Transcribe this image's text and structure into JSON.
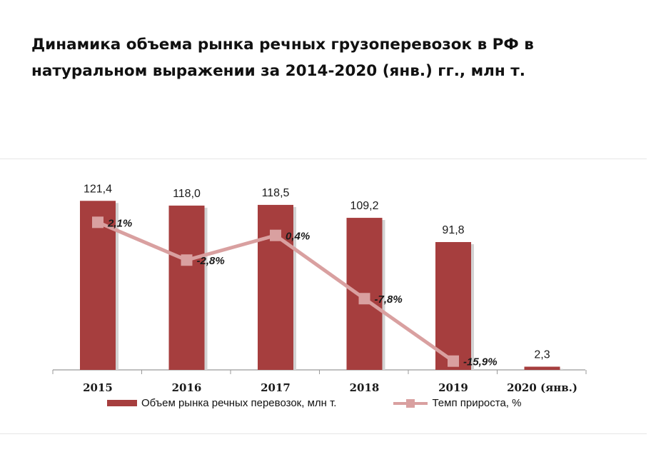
{
  "chart_data": {
    "type": "bar",
    "title": "Динамика объема рынка речных грузоперевозок в РФ в натуральном выражении за 2014-2020 (янв.) гг., млн т.",
    "categories": [
      "2015",
      "2016",
      "2017",
      "2018",
      "2019",
      "2020 (янв.)"
    ],
    "series": [
      {
        "name": "Объем рынка речных перевозок, млн т.",
        "type": "bar",
        "values": [
          121.4,
          118.0,
          118.5,
          109.2,
          91.8,
          2.3
        ],
        "labels": [
          "121,4",
          "118,0",
          "118,5",
          "109,2",
          "91,8",
          "2,3"
        ]
      },
      {
        "name": "Темп прироста, %",
        "type": "line",
        "values": [
          2.1,
          -2.8,
          0.4,
          -7.8,
          -15.9,
          null
        ],
        "labels": [
          "2,1%",
          "-2,8%",
          "0,4%",
          "-7,8%",
          "-15,9%",
          null
        ]
      }
    ],
    "colors": {
      "bar": "#a63e3e",
      "bar_shadow": "#d3d3d3",
      "line": "#d9a0a0"
    },
    "legend_position": "bottom",
    "grid": false
  }
}
